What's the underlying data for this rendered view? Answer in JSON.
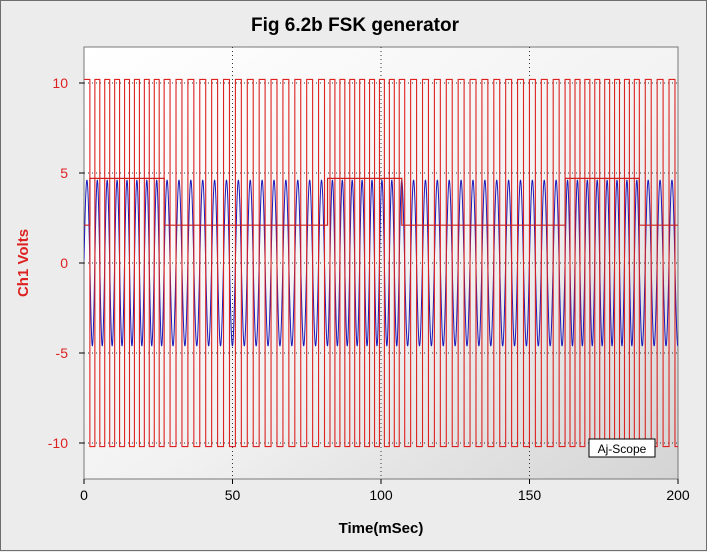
{
  "chart_data": {
    "type": "line",
    "title": "Fig 6.2b  FSK generator",
    "xlabel": "Time(mSec)",
    "ylabel": "Ch1 Volts",
    "xlim": [
      0,
      200
    ],
    "ylim": [
      -12,
      12
    ],
    "x_ticks": [
      "0",
      "50",
      "100",
      "150",
      "200"
    ],
    "y_ticks": [
      "10",
      "5",
      "0",
      "-5",
      "-10"
    ],
    "grid": "dotted",
    "watermark": "Aj-Scope",
    "colors": {
      "square": "#dd2222",
      "data": "#cc2222",
      "sine": "#1a1ab8",
      "ylabel": "#dd2222",
      "ytick": "#dd2222"
    },
    "series": [
      {
        "values": {
          "square_high": 10.2,
          "square_low": -10.2,
          "square_periods_ms": {
            "mark": 3.333,
            "space": 4.0
          },
          "data_high": 4.7,
          "data_low": 2.1,
          "data_high_intervals_ms": [
            [
              2,
              27
            ],
            [
              82,
              107
            ],
            [
              162,
              187
            ]
          ],
          "sine_amplitude": 4.6,
          "sine_periods_ms": {
            "mark": 3.333,
            "space": 4.0
          }
        }
      }
    ]
  }
}
